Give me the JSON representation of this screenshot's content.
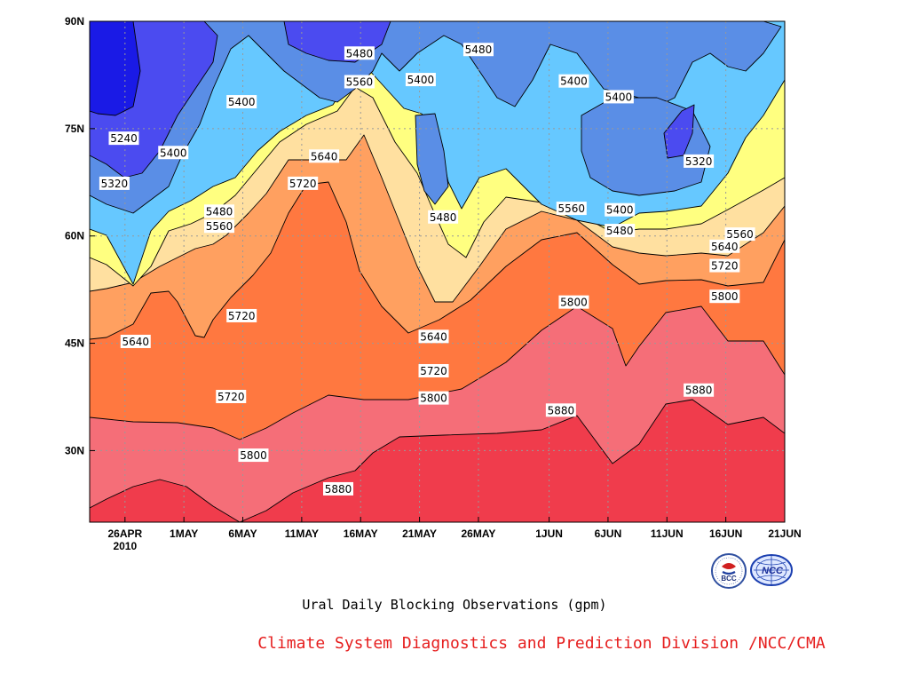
{
  "colors": {
    "levels": [
      "#1a1ae6",
      "#4b4bf0",
      "#5a8ee6",
      "#66c8ff",
      "#ffff80",
      "#ffe0a0",
      "#ffa060",
      "#ff7840",
      "#f56e78",
      "#f03c4c"
    ],
    "grid": "#999999",
    "credit": "#e61e1e"
  },
  "chart_data": {
    "type": "contour",
    "title": "Ural Daily Blocking Observations (gpm)",
    "xlabel": "",
    "ylabel": "",
    "x_ticks": [
      "26APR",
      "1MAY",
      "6MAY",
      "11MAY",
      "16MAY",
      "21MAY",
      "26MAY",
      "1JUN",
      "6JUN",
      "11JUN",
      "16JUN",
      "21JUN"
    ],
    "x_tick_days": [
      0,
      5,
      10,
      15,
      20,
      25,
      30,
      36,
      41,
      46,
      51,
      56
    ],
    "x_year_label": "2010",
    "xlim_days": [
      -3,
      56
    ],
    "y_ticks": [
      "90N",
      "75N",
      "60N",
      "45N",
      "30N"
    ],
    "y_tick_values": [
      90,
      75,
      60,
      45,
      30
    ],
    "ylim": [
      20,
      90
    ],
    "levels": [
      5240,
      5320,
      5400,
      5480,
      5560,
      5640,
      5720,
      5800,
      5880
    ],
    "contour_labels": [
      {
        "text": "5480",
        "x": 19.9,
        "y": 85.5
      },
      {
        "text": "5480",
        "x": 30.0,
        "y": 86.0
      },
      {
        "text": "5560",
        "x": 19.9,
        "y": 81.5
      },
      {
        "text": "5400",
        "x": 25.1,
        "y": 81.8
      },
      {
        "text": "5400",
        "x": 9.9,
        "y": 78.7
      },
      {
        "text": "5240",
        "x": -0.1,
        "y": 73.6
      },
      {
        "text": "5400",
        "x": 4.1,
        "y": 71.6
      },
      {
        "text": "5320",
        "x": -0.9,
        "y": 67.3
      },
      {
        "text": "5640",
        "x": 16.9,
        "y": 71.1
      },
      {
        "text": "5720",
        "x": 15.1,
        "y": 67.3
      },
      {
        "text": "5480",
        "x": 8.0,
        "y": 63.4
      },
      {
        "text": "5560",
        "x": 8.0,
        "y": 61.3
      },
      {
        "text": "5480",
        "x": 27.0,
        "y": 62.6
      },
      {
        "text": "5400",
        "x": 38.1,
        "y": 81.6
      },
      {
        "text": "5400",
        "x": 41.9,
        "y": 79.4
      },
      {
        "text": "5320",
        "x": 48.7,
        "y": 70.4
      },
      {
        "text": "5560",
        "x": 37.9,
        "y": 63.8
      },
      {
        "text": "5400",
        "x": 42.0,
        "y": 63.6
      },
      {
        "text": "5480",
        "x": 42.0,
        "y": 60.7
      },
      {
        "text": "5560",
        "x": 52.2,
        "y": 60.2
      },
      {
        "text": "5640",
        "x": 50.9,
        "y": 58.5
      },
      {
        "text": "5720",
        "x": 50.9,
        "y": 55.8
      },
      {
        "text": "5720",
        "x": 9.9,
        "y": 48.8
      },
      {
        "text": "5640",
        "x": 0.9,
        "y": 45.2
      },
      {
        "text": "5640",
        "x": 26.2,
        "y": 45.9
      },
      {
        "text": "5800",
        "x": 38.1,
        "y": 50.7
      },
      {
        "text": "5800",
        "x": 50.9,
        "y": 51.5
      },
      {
        "text": "5720",
        "x": 26.2,
        "y": 41.1
      },
      {
        "text": "5800",
        "x": 26.2,
        "y": 37.3
      },
      {
        "text": "5720",
        "x": 9.0,
        "y": 37.5
      },
      {
        "text": "5880",
        "x": 37.0,
        "y": 35.6
      },
      {
        "text": "5880",
        "x": 48.7,
        "y": 38.4
      },
      {
        "text": "5800",
        "x": 10.9,
        "y": 29.3
      },
      {
        "text": "5880",
        "x": 18.1,
        "y": 24.6
      }
    ]
  },
  "footer": {
    "caption": "Ural Daily Blocking Observations (gpm)",
    "credit": "Climate System Diagnostics and Prediction Division /NCC/CMA"
  },
  "logos": [
    {
      "name": "bcc-logo",
      "icon": "bcc-circular-emblem",
      "text": "BCC"
    },
    {
      "name": "ncc-logo",
      "icon": "ncc-globe-emblem",
      "text": "NCC"
    }
  ]
}
